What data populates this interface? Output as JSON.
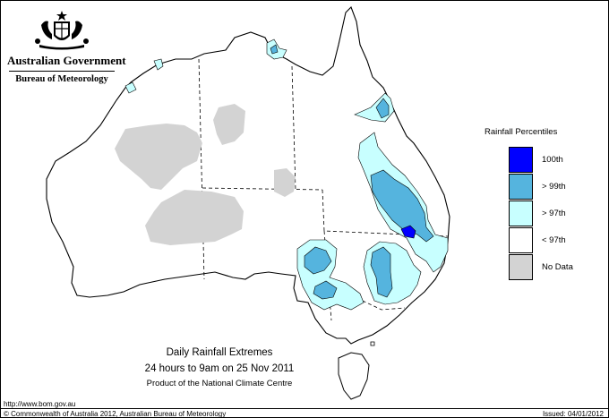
{
  "header": {
    "government": "Australian Government",
    "bureau": "Bureau of Meteorology"
  },
  "legend": {
    "title": "Rainfall Percentiles",
    "items": [
      {
        "label": "100th",
        "color": "#0000ff"
      },
      {
        "label": "> 99th",
        "color": "#55b4de"
      },
      {
        "label": "> 97th",
        "color": "#c8ffff"
      },
      {
        "label": "< 97th",
        "color": "#ffffff"
      },
      {
        "label": "No Data",
        "color": "#d3d3d3"
      }
    ]
  },
  "title": {
    "line1": "Daily Rainfall Extremes",
    "line2": "24 hours to 9am on 25 Nov 2011",
    "line3": "Product of the National Climate Centre"
  },
  "footer": {
    "url": "http://www.bom.gov.au",
    "copyright": "© Commonwealth of Australia 2012, Australian Bureau of Meteorology",
    "issued": "Issued: 04/01/2012"
  }
}
